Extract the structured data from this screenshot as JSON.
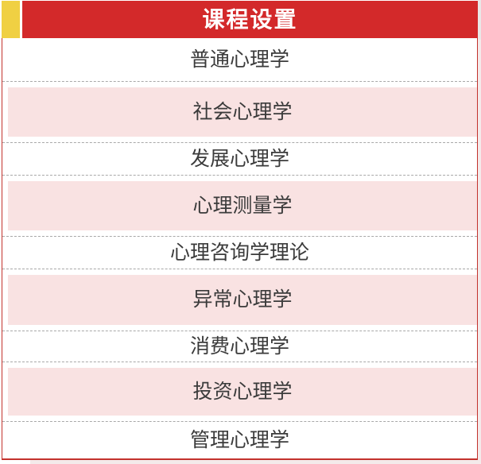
{
  "header": {
    "title": "课程设置"
  },
  "courses": [
    {
      "label": "普通心理学",
      "highlighted": false
    },
    {
      "label": "社会心理学",
      "highlighted": true
    },
    {
      "label": "发展心理学",
      "highlighted": false
    },
    {
      "label": "心理测量学",
      "highlighted": true
    },
    {
      "label": "心理咨询学理论",
      "highlighted": false
    },
    {
      "label": "异常心理学",
      "highlighted": true
    },
    {
      "label": "消费心理学",
      "highlighted": false
    },
    {
      "label": "投资心理学",
      "highlighted": true
    },
    {
      "label": "管理心理学",
      "highlighted": false
    }
  ],
  "colors": {
    "header_bg": "#d3292a",
    "header_text": "#ffffff",
    "accent_yellow": "#f0d043",
    "row_highlight": "#f9e2e2",
    "border_red": "#c3322d",
    "divider_gray": "#a8a8a8",
    "text_dark": "#3b3b3b",
    "page_edge_pink": "#f4eaea"
  }
}
